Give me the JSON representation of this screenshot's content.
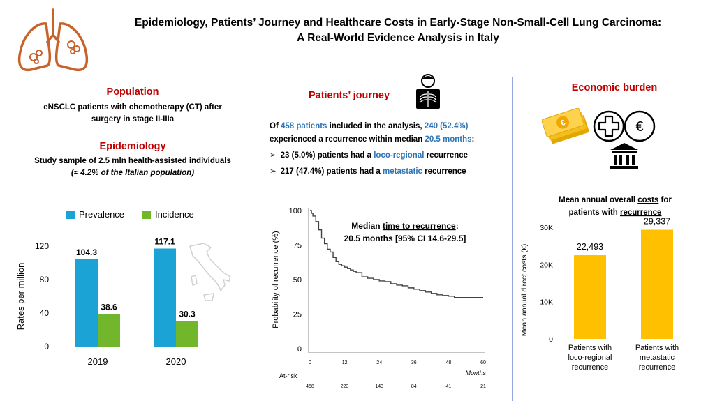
{
  "title": {
    "line1": "Epidemiology, Patients’ Journey and Healthcare Costs in Early-Stage Non-Small-Cell Lung Carcinoma:",
    "line2": "A Real-World Evidence Analysis in Italy"
  },
  "left": {
    "population_heading": "Population",
    "population_line1": "eNSCLC patients with chemotherapy (CT) after",
    "population_line2": "surgery in stage II-IIIa",
    "epidemiology_heading": "Epidemiology",
    "epidemiology_line1": "Study sample of 2.5 mln health-assisted individuals",
    "epidemiology_line2": "(≈ 4.2% of the Italian population)"
  },
  "middle": {
    "heading": "Patients’ journey",
    "p_of": "Of ",
    "p_n": "458 patients",
    "p_mid": " included in the analysis, ",
    "p_recur": "240 (52.4%)",
    "p_end1": " experienced a recurrence within median ",
    "p_months": "20.5 months",
    "p_colon": ":",
    "b1_pre": "23 (5.0%) patients had a ",
    "b1_hl": "loco-regional",
    "b1_post": " recurrence",
    "b2_pre": "217 (47.4%) patients had a ",
    "b2_hl": "metastatic",
    "b2_post": " recurrence",
    "bullet_mark": "➢"
  },
  "right": {
    "heading": "Economic burden"
  },
  "colors": {
    "heading_red": "#c00000",
    "highlight_blue": "#2e75b6",
    "prevalence": "#1aa3d4",
    "incidence": "#72b62b",
    "cost_bar": "#ffc000",
    "km_line": "#404040"
  },
  "chart_data": [
    {
      "type": "bar",
      "categories": [
        "2019",
        "2020"
      ],
      "series": [
        {
          "name": "Prevalence",
          "values": [
            104.3,
            117.1
          ]
        },
        {
          "name": "Incidence",
          "values": [
            38.6,
            30.3
          ]
        }
      ],
      "data_labels": [
        "104.3",
        "117.1",
        "38.6",
        "30.3"
      ],
      "ylabel": "Rates per million",
      "yticks": [
        "0",
        "40",
        "80",
        "120"
      ],
      "ylim": [
        0,
        120
      ],
      "legend": "top"
    },
    {
      "type": "line",
      "annotation_line1": "Median time to recurrence:",
      "annotation_line2": "20.5 months [95% CI 14.6-29.5]",
      "annotation_underlined": "time to recurrence",
      "ylabel": "Probability of recurrence (%)",
      "xlabel": "Months",
      "xticks": [
        "0",
        "12",
        "24",
        "36",
        "48",
        "60"
      ],
      "yticks": [
        "0",
        "25",
        "50",
        "75",
        "100"
      ],
      "xlim": [
        0,
        60
      ],
      "ylim": [
        0,
        100
      ],
      "at_risk_label": "At-risk",
      "at_risk": [
        "458",
        "223",
        "143",
        "84",
        "41",
        "21"
      ],
      "series": [
        {
          "x": [
            0,
            0.5,
            1,
            2,
            3,
            4,
            5,
            6,
            7,
            8,
            9,
            10,
            11,
            12,
            13,
            14,
            15,
            16,
            18,
            20,
            22,
            24,
            26,
            28,
            30,
            32,
            34,
            36,
            38,
            40,
            42,
            44,
            46,
            48,
            50,
            52,
            54,
            56,
            58,
            60
          ],
          "y": [
            100,
            98,
            96,
            92,
            86,
            80,
            76,
            72,
            70,
            66,
            63,
            61,
            60,
            59,
            58,
            57,
            56,
            55,
            52,
            51,
            50,
            49,
            48.5,
            47,
            46,
            45.5,
            44,
            43,
            42,
            41,
            40,
            39,
            38.5,
            38,
            37,
            37,
            37,
            37,
            37,
            37
          ]
        }
      ]
    },
    {
      "type": "bar",
      "title_line1": "Mean annual overall costs for",
      "title_line2": "patients with recurrence",
      "categories": [
        "Patients with loco-regional recurrence",
        "Patients with metastatic recurrence"
      ],
      "category_lines": [
        [
          "Patients with",
          "loco-regional",
          "recurrence"
        ],
        [
          "Patients with",
          "metastatic",
          "recurrence"
        ]
      ],
      "values": [
        22493,
        29337
      ],
      "data_labels": [
        "22,493",
        "29,337"
      ],
      "ylabel": "Mean annual direct costs (€)",
      "yticks": [
        "0",
        "10K",
        "20K",
        "30K"
      ],
      "ylim": [
        0,
        30000
      ]
    }
  ]
}
